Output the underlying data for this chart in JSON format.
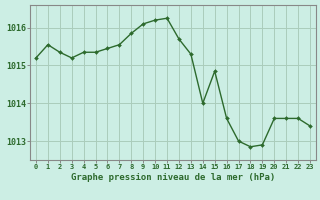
{
  "x": [
    0,
    1,
    2,
    3,
    4,
    5,
    6,
    7,
    8,
    9,
    10,
    11,
    12,
    13,
    14,
    15,
    16,
    17,
    18,
    19,
    20,
    21,
    22,
    23
  ],
  "y": [
    1015.2,
    1015.55,
    1015.35,
    1015.2,
    1015.35,
    1015.35,
    1015.45,
    1015.55,
    1015.85,
    1016.1,
    1016.2,
    1016.25,
    1015.7,
    1015.3,
    1014.0,
    1014.85,
    1013.6,
    1013.0,
    1012.85,
    1012.9,
    1013.6,
    1013.6,
    1013.6,
    1013.4
  ],
  "line_color": "#2d6a2d",
  "marker_color": "#2d6a2d",
  "bg_color": "#cceee4",
  "grid_color": "#aaccbb",
  "axis_color": "#888888",
  "xlabel": "Graphe pression niveau de la mer (hPa)",
  "xlabel_color": "#2d6a2d",
  "tick_color": "#2d6a2d",
  "ylim": [
    1012.5,
    1016.6
  ],
  "yticks": [
    1013,
    1014,
    1015,
    1016
  ],
  "xlim": [
    -0.5,
    23.5
  ],
  "xticks": [
    0,
    1,
    2,
    3,
    4,
    5,
    6,
    7,
    8,
    9,
    10,
    11,
    12,
    13,
    14,
    15,
    16,
    17,
    18,
    19,
    20,
    21,
    22,
    23
  ]
}
